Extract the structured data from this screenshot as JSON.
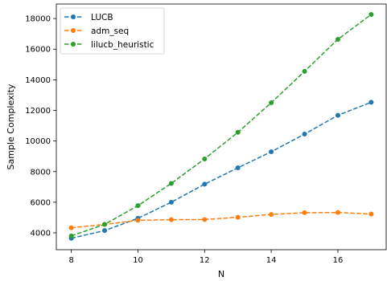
{
  "chart_data": {
    "type": "line",
    "xlabel": "N",
    "ylabel": "Sample Complexity",
    "xlim": [
      7.55,
      17.45
    ],
    "ylim": [
      2900,
      18950
    ],
    "xticks": [
      8,
      10,
      12,
      14,
      16
    ],
    "yticks": [
      4000,
      6000,
      8000,
      10000,
      12000,
      14000,
      16000,
      18000
    ],
    "grid": false,
    "legend_position": "top-left",
    "line_style": "dashed",
    "marker": "circle",
    "x": [
      8,
      9,
      10,
      11,
      12,
      13,
      14,
      15,
      16,
      17
    ],
    "series": [
      {
        "name": "LUCB",
        "color": "#1f77b4",
        "values": [
          3650,
          4150,
          4950,
          6000,
          7180,
          8250,
          9300,
          10450,
          11680,
          12530
        ]
      },
      {
        "name": "adm_seq",
        "color": "#ff7f0e",
        "values": [
          4330,
          4550,
          4820,
          4860,
          4870,
          5020,
          5200,
          5320,
          5330,
          5230
        ]
      },
      {
        "name": "lilucb_heuristic",
        "color": "#2ca02c",
        "values": [
          3800,
          4550,
          5780,
          7230,
          8830,
          10570,
          12500,
          14550,
          16640,
          18270
        ]
      }
    ]
  }
}
